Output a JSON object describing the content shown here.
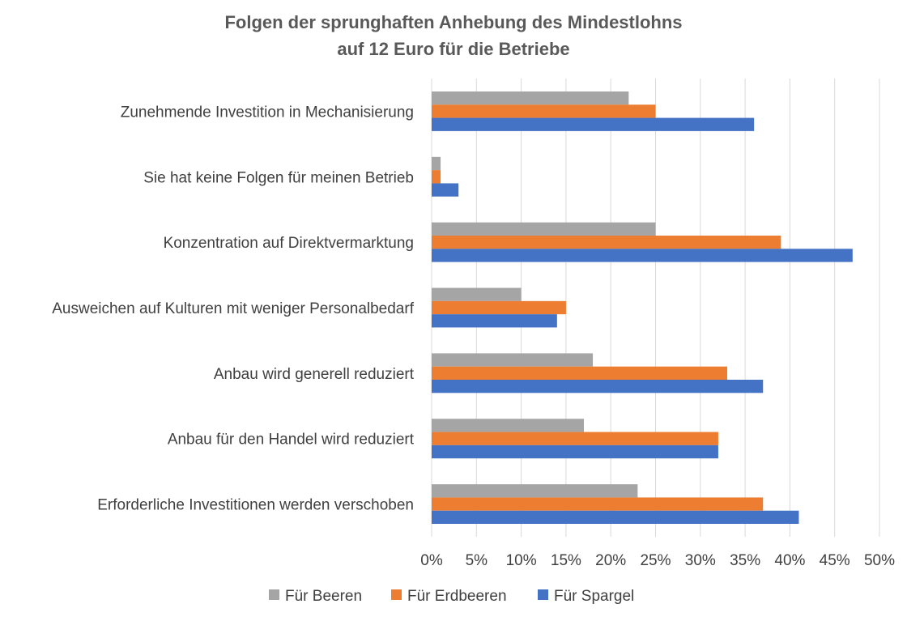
{
  "chart_data": {
    "type": "bar",
    "orientation": "horizontal",
    "title": "Folgen der sprunghaften Anhebung des Mindestlohns auf 12 Euro für die Betriebe",
    "title_lines": [
      "Folgen der sprunghaften Anhebung des Mindestlohns",
      "auf 12 Euro für die Betriebe"
    ],
    "categories": [
      "Zunehmende Investition in Mechanisierung",
      "Sie hat keine Folgen für meinen Betrieb",
      "Konzentration auf Direktvermarktung",
      "Ausweichen auf Kulturen mit weniger Personalbedarf",
      "Anbau wird generell reduziert",
      "Anbau für den Handel wird reduziert",
      "Erforderliche Investitionen werden verschoben"
    ],
    "series": [
      {
        "name": "Für Beeren",
        "color": "#a5a5a5",
        "values": [
          22,
          1,
          25,
          10,
          18,
          17,
          23
        ]
      },
      {
        "name": "Für Erdbeeren",
        "color": "#ed7d31",
        "values": [
          25,
          1,
          39,
          15,
          33,
          32,
          37
        ]
      },
      {
        "name": "Für Spargel",
        "color": "#4472c4",
        "values": [
          36,
          3,
          47,
          14,
          37,
          32,
          41
        ]
      }
    ],
    "xlim": [
      0,
      50
    ],
    "x_ticks": [
      0,
      5,
      10,
      15,
      20,
      25,
      30,
      35,
      40,
      45,
      50
    ],
    "x_tick_labels": [
      "0%",
      "5%",
      "10%",
      "15%",
      "20%",
      "25%",
      "30%",
      "35%",
      "40%",
      "45%",
      "50%"
    ],
    "xlabel": "",
    "ylabel": "",
    "unit": "%",
    "grid": true,
    "gridline_color": "#d9d9d9",
    "legend_position": "bottom"
  }
}
